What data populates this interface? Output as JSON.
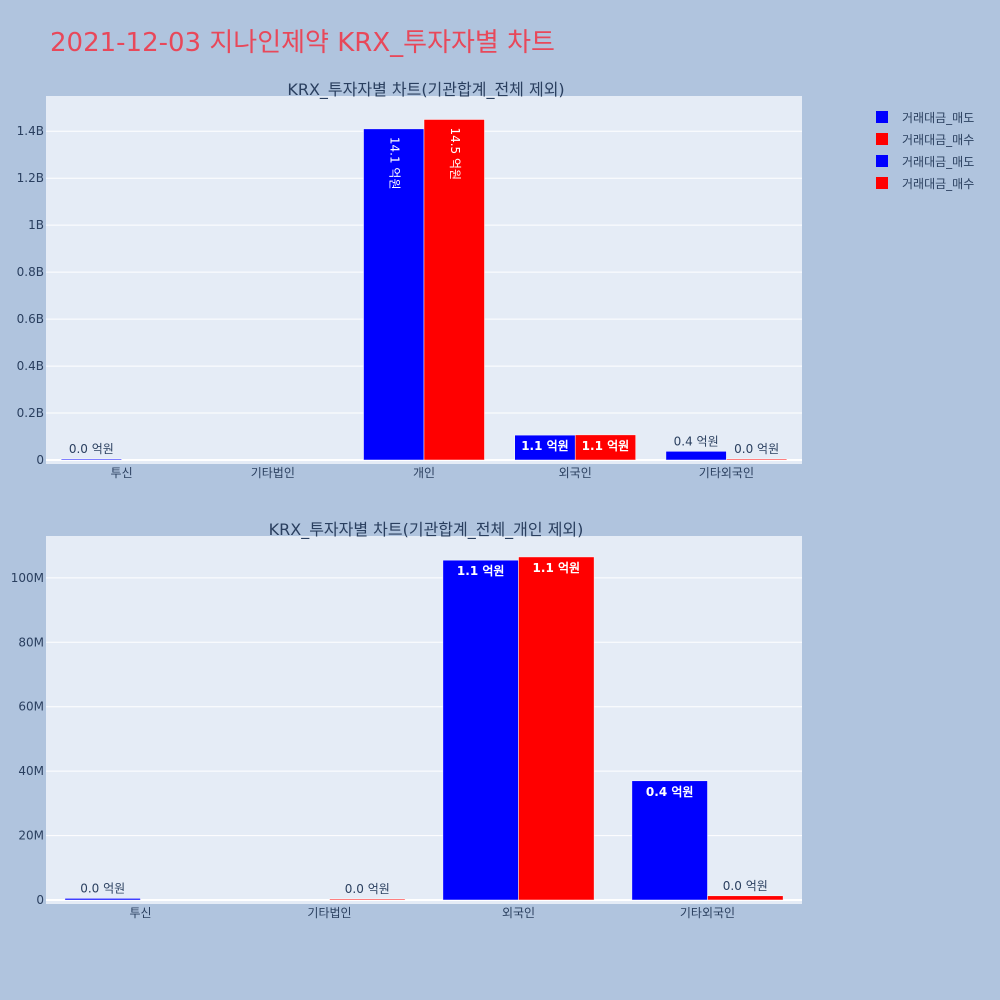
{
  "title": "2021-12-03 지나인제약 KRX_투자자별 차트",
  "colors": {
    "sell": "#0000ff",
    "buy": "#ff0000",
    "plot_bg": "#e5ecf6",
    "page_bg": "#b0c4de",
    "title": "#e8485a"
  },
  "legend": [
    {
      "label": "거래대금_매도",
      "color": "#0000ff"
    },
    {
      "label": "거래대금_매수",
      "color": "#ff0000"
    },
    {
      "label": "거래대금_매도",
      "color": "#0000ff"
    },
    {
      "label": "거래대금_매수",
      "color": "#ff0000"
    }
  ],
  "chart_data": [
    {
      "type": "bar",
      "title": "KRX_투자자별 차트(기관합계_전체 제외)",
      "categories": [
        "투신",
        "기타법인",
        "개인",
        "외국인",
        "기타외국인"
      ],
      "ylim": [
        0,
        1550000000
      ],
      "yticks": [
        0,
        200000000,
        400000000,
        600000000,
        800000000,
        1000000000,
        1200000000,
        1400000000
      ],
      "ytick_labels": [
        "0",
        "0.2B",
        "0.4B",
        "0.6B",
        "0.8B",
        "1B",
        "1.2B",
        "1.4B"
      ],
      "grid": true,
      "series": [
        {
          "name": "거래대금_매도",
          "color": "#0000ff",
          "values": [
            1500000,
            null,
            1410000000,
            106000000,
            37000000
          ],
          "labels": [
            "0.0 억원",
            "",
            "14.1 억원",
            "1.1 억원",
            "0.4 억원"
          ]
        },
        {
          "name": "거래대금_매수",
          "color": "#ff0000",
          "values": [
            null,
            null,
            1450000000,
            107000000,
            1500000
          ],
          "labels": [
            "",
            "",
            "14.5 억원",
            "1.1 억원",
            "0.0 억원"
          ]
        }
      ]
    },
    {
      "type": "bar",
      "title": "KRX_투자자별 차트(기관합계_전체_개인 제외)",
      "categories": [
        "투신",
        "기타법인",
        "외국인",
        "기타외국인"
      ],
      "ylim": [
        0,
        113000000
      ],
      "yticks": [
        0,
        20000000,
        40000000,
        60000000,
        80000000,
        100000000
      ],
      "ytick_labels": [
        "0",
        "20M",
        "40M",
        "60M",
        "80M",
        "100M"
      ],
      "grid": true,
      "series": [
        {
          "name": "거래대금_매도",
          "color": "#0000ff",
          "values": [
            500000,
            null,
            105500000,
            37000000
          ],
          "labels": [
            "0.0 억원",
            "",
            "1.1 억원",
            "0.4 억원"
          ]
        },
        {
          "name": "거래대금_매수",
          "color": "#ff0000",
          "values": [
            null,
            150000,
            106500000,
            1300000
          ],
          "labels": [
            "",
            "0.0 억원",
            "1.1 억원",
            "0.0 억원"
          ]
        }
      ]
    }
  ]
}
